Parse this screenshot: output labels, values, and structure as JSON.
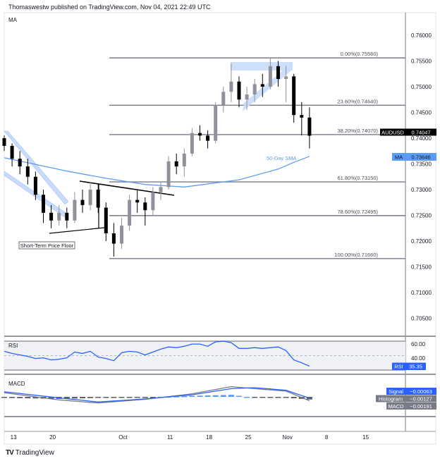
{
  "header": {
    "published": "Thomaswestw published on TradingView.com, Nov 04, 2021 22:49 UTC"
  },
  "footer": {
    "brand": "TradingView"
  },
  "colors": {
    "up": "#8f929a",
    "down": "#000000",
    "sma": "#5b9cf6",
    "rsi": "#2962ff",
    "signal": "#2962ff",
    "macd": "#787b86",
    "fib": "#787b86",
    "pattern_fill": "#c9dbfb"
  },
  "chart_data": [
    {
      "type": "candlestick",
      "pane_label": "MA",
      "symbol": "AUDUSD",
      "last_price": "0.74047",
      "ylim": [
        0.701,
        0.764
      ],
      "y_ticks": [
        "0.76000",
        "0.75500",
        "0.75000",
        "0.74500",
        "0.74000",
        "0.73500",
        "0.73000",
        "0.72500",
        "0.72000",
        "0.71500",
        "0.71000",
        "0.70500"
      ],
      "x_ticks": [
        {
          "label": "13",
          "date": "2021-09-13"
        },
        {
          "label": "20",
          "date": "2021-09-20"
        },
        {
          "label": "Oct",
          "date": "2021-10-01"
        },
        {
          "label": "11",
          "date": "2021-10-11"
        },
        {
          "label": "18",
          "date": "2021-10-18"
        },
        {
          "label": "25",
          "date": "2021-10-25"
        },
        {
          "label": "Nov",
          "date": "2021-11-01"
        },
        {
          "label": "8",
          "date": "2021-11-08"
        },
        {
          "label": "15",
          "date": "2021-11-15"
        }
      ],
      "ohlc": [
        [
          "2021-09-10",
          0.74,
          0.7405,
          0.7375,
          0.7385
        ],
        [
          "2021-09-13",
          0.7385,
          0.739,
          0.7345,
          0.736
        ],
        [
          "2021-09-14",
          0.736,
          0.7375,
          0.733,
          0.7345
        ],
        [
          "2021-09-15",
          0.7345,
          0.736,
          0.731,
          0.7325
        ],
        [
          "2021-09-16",
          0.7325,
          0.7335,
          0.728,
          0.729
        ],
        [
          "2021-09-17",
          0.729,
          0.73,
          0.7235,
          0.7255
        ],
        [
          "2021-09-20",
          0.7255,
          0.727,
          0.7225,
          0.724
        ],
        [
          "2021-09-21",
          0.724,
          0.727,
          0.723,
          0.7255
        ],
        [
          "2021-09-22",
          0.7255,
          0.7265,
          0.7225,
          0.724
        ],
        [
          "2021-09-23",
          0.724,
          0.7295,
          0.7235,
          0.728
        ],
        [
          "2021-09-24",
          0.728,
          0.73,
          0.7255,
          0.727
        ],
        [
          "2021-09-27",
          0.727,
          0.7315,
          0.726,
          0.73
        ],
        [
          "2021-09-28",
          0.73,
          0.731,
          0.7255,
          0.7265
        ],
        [
          "2021-09-29",
          0.7265,
          0.7275,
          0.72,
          0.7215
        ],
        [
          "2021-09-30",
          0.7215,
          0.7235,
          0.717,
          0.7195
        ],
        [
          "2021-10-01",
          0.7195,
          0.7245,
          0.7185,
          0.723
        ],
        [
          "2021-10-04",
          0.723,
          0.729,
          0.722,
          0.728
        ],
        [
          "2021-10-05",
          0.728,
          0.73,
          0.7255,
          0.7275
        ],
        [
          "2021-10-06",
          0.7275,
          0.7285,
          0.723,
          0.726
        ],
        [
          "2021-10-07",
          0.726,
          0.7305,
          0.725,
          0.7295
        ],
        [
          "2021-10-08",
          0.7295,
          0.7315,
          0.728,
          0.7305
        ],
        [
          "2021-10-11",
          0.7305,
          0.7365,
          0.73,
          0.7355
        ],
        [
          "2021-10-12",
          0.7355,
          0.737,
          0.733,
          0.7345
        ],
        [
          "2021-10-13",
          0.7345,
          0.738,
          0.7325,
          0.737
        ],
        [
          "2021-10-14",
          0.737,
          0.742,
          0.7365,
          0.741
        ],
        [
          "2021-10-15",
          0.741,
          0.7425,
          0.7395,
          0.7405
        ],
        [
          "2021-10-18",
          0.7405,
          0.7415,
          0.738,
          0.7395
        ],
        [
          "2021-10-19",
          0.7395,
          0.747,
          0.739,
          0.7465
        ],
        [
          "2021-10-20",
          0.7465,
          0.75,
          0.745,
          0.749
        ],
        [
          "2021-10-21",
          0.749,
          0.7545,
          0.747,
          0.751
        ],
        [
          "2021-10-22",
          0.751,
          0.752,
          0.746,
          0.7475
        ],
        [
          "2021-10-25",
          0.7475,
          0.75,
          0.7455,
          0.7485
        ],
        [
          "2021-10-26",
          0.7485,
          0.7515,
          0.747,
          0.7505
        ],
        [
          "2021-10-27",
          0.7505,
          0.7525,
          0.748,
          0.75
        ],
        [
          "2021-10-28",
          0.75,
          0.7556,
          0.7495,
          0.754
        ],
        [
          "2021-10-29",
          0.754,
          0.755,
          0.75,
          0.7515
        ],
        [
          "2021-11-01",
          0.7515,
          0.754,
          0.747,
          0.752
        ],
        [
          "2021-11-02",
          0.752,
          0.7525,
          0.743,
          0.7445
        ],
        [
          "2021-11-03",
          0.7445,
          0.747,
          0.7405,
          0.744
        ],
        [
          "2021-11-04",
          0.744,
          0.746,
          0.738,
          0.74047
        ]
      ],
      "sma": {
        "label": "50-Day SMA",
        "tag": "MA",
        "last_value": "0.73646",
        "points": [
          [
            "2021-09-10",
            0.7362
          ],
          [
            "2021-09-22",
            0.7336
          ],
          [
            "2021-09-29",
            0.7322
          ],
          [
            "2021-10-06",
            0.731
          ],
          [
            "2021-10-13",
            0.7305
          ],
          [
            "2021-10-22",
            0.7319
          ],
          [
            "2021-10-29",
            0.734
          ],
          [
            "2021-11-02",
            0.7353
          ],
          [
            "2021-11-04",
            0.73646
          ]
        ]
      },
      "fibonacci": [
        {
          "label": "0.00%(0.75560)",
          "price": 0.7556
        },
        {
          "label": "23.60%(0.74640)",
          "price": 0.7464
        },
        {
          "label": "38.20%(0.74070)",
          "price": 0.7407
        },
        {
          "label": "61.80%(0.73150)",
          "price": 0.7315
        },
        {
          "label": "78.60%(0.72495)",
          "price": 0.72495
        },
        {
          "label": "100.00%(0.71660)",
          "price": 0.7166
        }
      ],
      "annotations": {
        "floor_label": "Short-Term Price Floor"
      }
    },
    {
      "type": "line",
      "pane_label": "RSI",
      "tag": "RSI",
      "last_value": "35.35",
      "ylim": [
        29,
        71
      ],
      "y_ticks": [
        "60.00",
        "40.00"
      ],
      "band": [
        30,
        70
      ],
      "values": [
        56,
        53,
        51,
        49,
        46,
        47,
        44,
        45,
        47,
        55,
        53,
        56,
        48,
        46,
        43,
        54,
        56,
        55,
        51,
        55,
        59,
        62,
        61,
        63,
        66,
        66,
        63,
        69,
        70,
        68,
        60,
        60,
        61,
        60,
        61,
        62,
        57,
        44,
        40,
        35.35
      ]
    },
    {
      "type": "line",
      "pane_label": "MACD",
      "legend": [
        {
          "name": "Signal",
          "value": "−0.00063"
        },
        {
          "name": "Histogram",
          "value": "−0.00127"
        },
        {
          "name": "MACD",
          "value": "−0.00191"
        }
      ],
      "signal": [
        [
          "2021-09-10",
          0.0025
        ],
        [
          "2021-09-21",
          -0.0005
        ],
        [
          "2021-09-28",
          -0.0025
        ],
        [
          "2021-10-06",
          -0.001
        ],
        [
          "2021-10-14",
          0.001
        ],
        [
          "2021-10-21",
          0.004
        ],
        [
          "2021-10-26",
          0.0045
        ],
        [
          "2021-11-01",
          0.0032
        ],
        [
          "2021-11-04",
          -0.00063
        ]
      ],
      "macd": [
        [
          "2021-09-10",
          0.002
        ],
        [
          "2021-09-21",
          -0.0015
        ],
        [
          "2021-09-28",
          -0.003
        ],
        [
          "2021-10-06",
          -0.0012
        ],
        [
          "2021-10-14",
          0.0015
        ],
        [
          "2021-10-21",
          0.005
        ],
        [
          "2021-10-26",
          0.004
        ],
        [
          "2021-11-01",
          0.0028
        ],
        [
          "2021-11-04",
          -0.00191
        ]
      ]
    }
  ]
}
